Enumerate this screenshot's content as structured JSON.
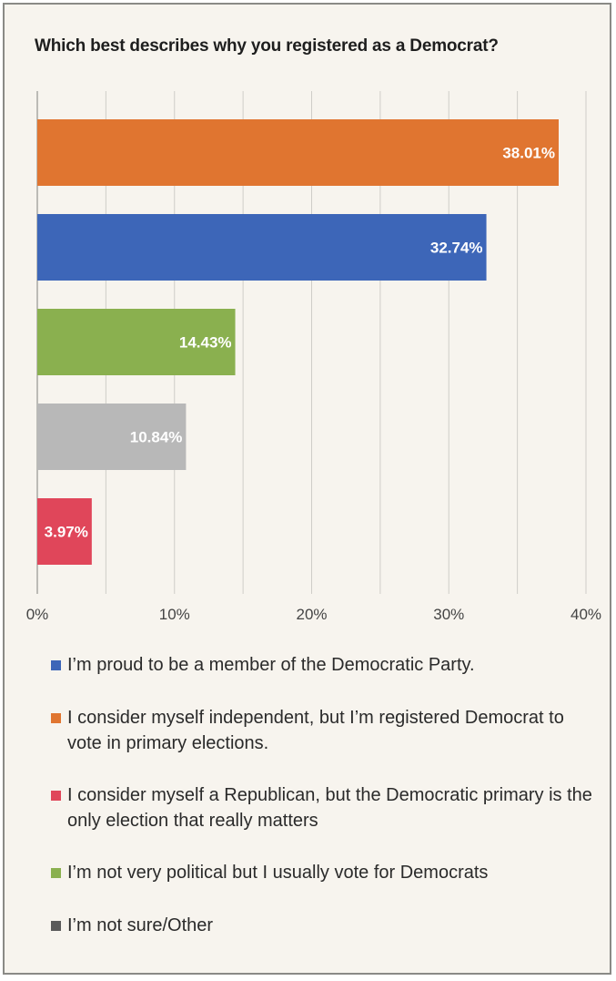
{
  "chart_data": {
    "type": "bar",
    "orientation": "horizontal",
    "title": "Which best describes why you registered as a Democrat?",
    "xlabel": "",
    "ylabel": "",
    "xlim": [
      0,
      40
    ],
    "x_ticks": [
      0,
      10,
      20,
      30,
      40
    ],
    "x_tick_labels": [
      "0%",
      "10%",
      "20%",
      "30%",
      "40%"
    ],
    "grid": true,
    "legend_position": "bottom",
    "bars": [
      {
        "value": 38.01,
        "label": "38.01%",
        "color": "#e07530"
      },
      {
        "value": 32.74,
        "label": "32.74%",
        "color": "#3d66b8"
      },
      {
        "value": 14.43,
        "label": "14.43%",
        "color": "#8ab04f"
      },
      {
        "value": 10.84,
        "label": "10.84%",
        "color": "#b8b8b8"
      },
      {
        "value": 3.97,
        "label": "3.97%",
        "color": "#e0465a"
      }
    ],
    "legend": [
      {
        "text": "I’m proud to be a member of the Democratic Party.",
        "color": "#3d66b8"
      },
      {
        "text": "I consider myself independent, but I’m registered Democrat to vote in primary elections.",
        "color": "#e07530"
      },
      {
        "text": "I consider myself a Republican, but the Democratic primary is the only election that really matters",
        "color": "#e0465a"
      },
      {
        "text": "I’m not very political but I usually vote for Democrats",
        "color": "#8ab04f"
      },
      {
        "text": "I’m not sure/Other",
        "color": "#5a5a5a"
      }
    ]
  }
}
